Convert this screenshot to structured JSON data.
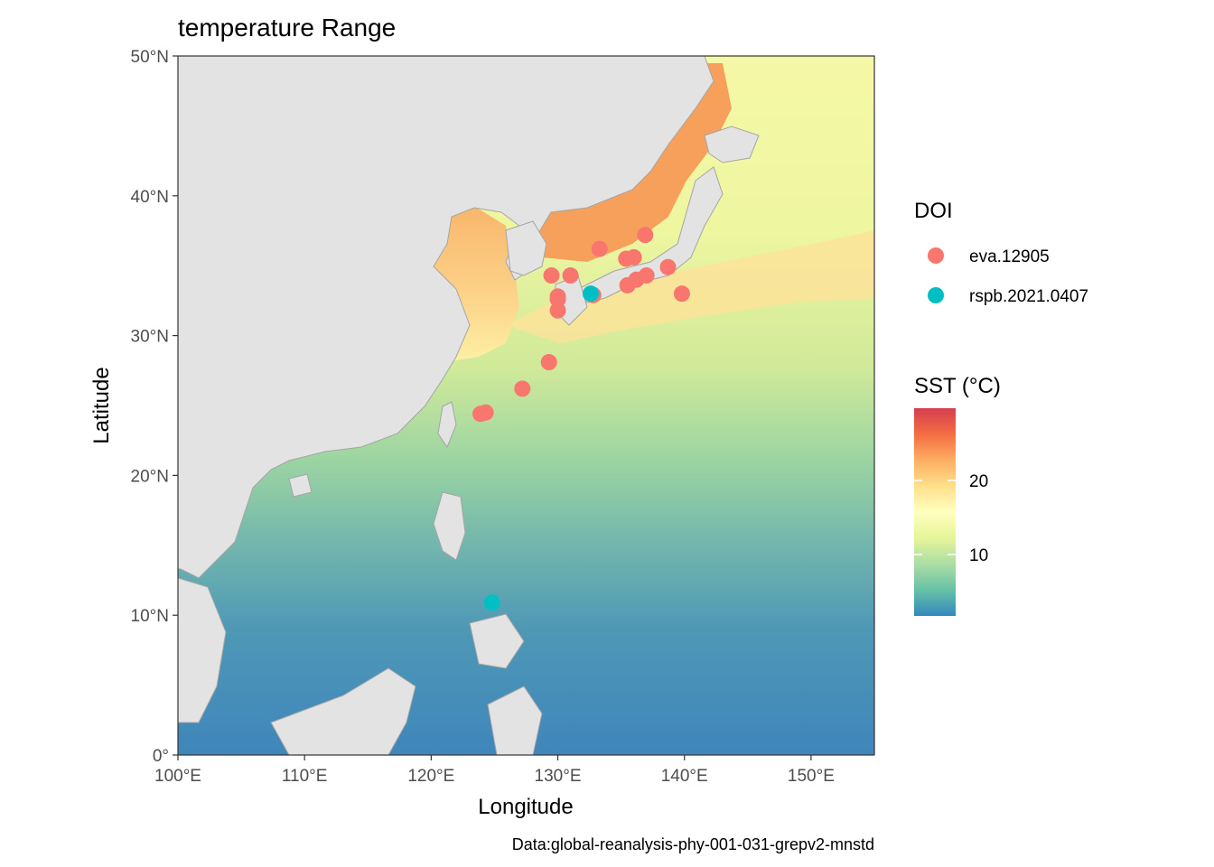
{
  "title": "temperature Range",
  "caption": "Data:global-reanalysis-phy-001-031-grepv2-mnstd",
  "x_axis": {
    "label": "Longitude",
    "ticks": [
      "100°E",
      "110°E",
      "120°E",
      "130°E",
      "140°E",
      "150°E"
    ],
    "range": [
      100,
      155
    ]
  },
  "y_axis": {
    "label": "Latitude",
    "ticks": [
      "0°",
      "10°N",
      "20°N",
      "30°N",
      "40°N",
      "50°N"
    ],
    "range": [
      0,
      50
    ]
  },
  "legend_doi": {
    "title": "DOI",
    "items": [
      {
        "label": "eva.12905",
        "color": "#F8766D"
      },
      {
        "label": "rspb.2021.0407",
        "color": "#00BFC4"
      }
    ]
  },
  "legend_sst": {
    "title": "SST (°C)",
    "ticks": [
      "20",
      "10"
    ],
    "colors": [
      "#D53E4F",
      "#F46D43",
      "#FDAE61",
      "#FEE08B",
      "#FFFFBF",
      "#E6F598",
      "#ABDDA4",
      "#66C2A5",
      "#3288BD"
    ]
  },
  "chart_data": {
    "type": "scatter",
    "title": "temperature Range",
    "xlabel": "Longitude",
    "ylabel": "Latitude",
    "xlim": [
      100,
      155
    ],
    "ylim": [
      0,
      50
    ],
    "series": [
      {
        "name": "eva.12905",
        "color": "#F8766D",
        "points": [
          [
            123.9,
            24.4
          ],
          [
            124.3,
            24.5
          ],
          [
            127.2,
            26.2
          ],
          [
            129.3,
            28.1
          ],
          [
            130.0,
            31.8
          ],
          [
            130.0,
            32.8
          ],
          [
            130.0,
            32.6
          ],
          [
            132.8,
            32.9
          ],
          [
            129.5,
            34.3
          ],
          [
            131.0,
            34.3
          ],
          [
            133.3,
            36.2
          ],
          [
            135.4,
            35.5
          ],
          [
            136.0,
            35.6
          ],
          [
            136.9,
            37.2
          ],
          [
            135.5,
            33.6
          ],
          [
            136.2,
            34.0
          ],
          [
            137.0,
            34.3
          ],
          [
            138.7,
            34.9
          ],
          [
            139.8,
            33.0
          ]
        ]
      },
      {
        "name": "rspb.2021.0407",
        "color": "#00BFC4",
        "points": [
          [
            132.6,
            33.0
          ],
          [
            124.8,
            10.9
          ]
        ]
      }
    ],
    "fill_scale": {
      "name": "SST (°C)",
      "breaks": [
        10,
        20
      ],
      "palette": "Spectral (reversed)"
    }
  }
}
